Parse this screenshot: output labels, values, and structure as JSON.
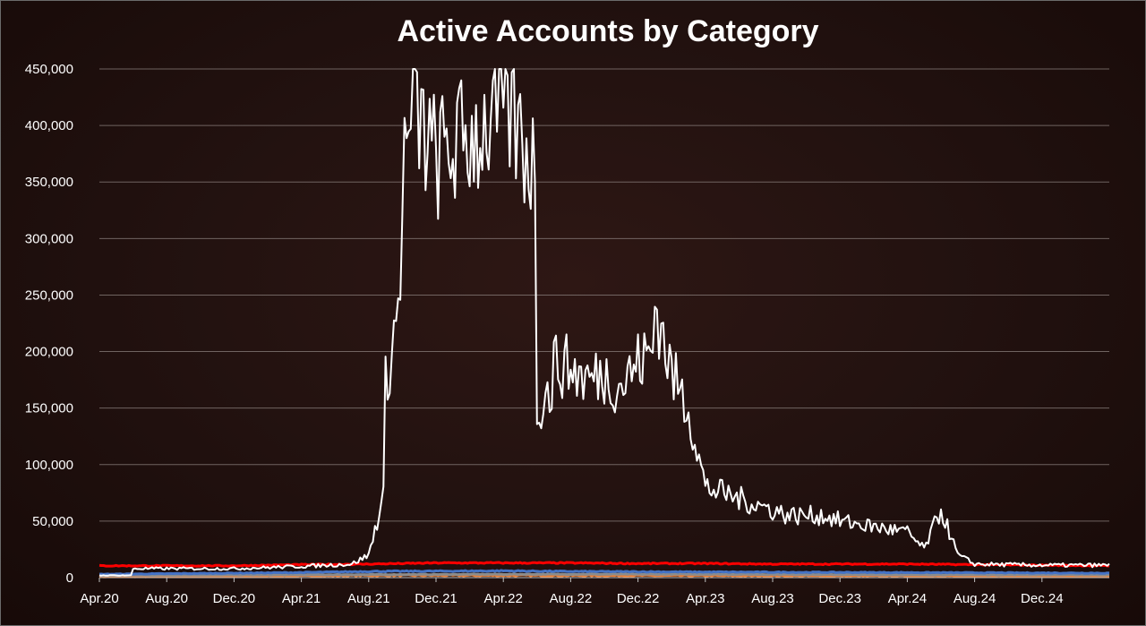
{
  "chart_data": {
    "type": "line",
    "title": "Active Accounts by Category",
    "xlabel": "",
    "ylabel": "",
    "ylim": [
      0,
      450000
    ],
    "y_ticks": [
      "0",
      "50,000",
      "100,000",
      "150,000",
      "200,000",
      "250,000",
      "300,000",
      "350,000",
      "400,000",
      "450,000"
    ],
    "x_ticks": [
      "Apr.20",
      "Aug.20",
      "Dec.20",
      "Apr.21",
      "Aug.21",
      "Dec.21",
      "Apr.22",
      "Aug.22",
      "Dec.22",
      "Apr.23",
      "Aug.23",
      "Dec.23",
      "Apr.24",
      "Aug.24",
      "Dec.24"
    ],
    "x_range": [
      "Apr.20",
      "Apr.25"
    ],
    "grid": true,
    "legend": "none",
    "series": [
      {
        "color": "#ffffff",
        "x": [
          "Apr.20",
          "Jun.20",
          "Jun.20",
          "Aug.20",
          "Dec.20",
          "Apr.21",
          "Jul.21",
          "Aug.21",
          "Sep.21",
          "Sep.21",
          "Oct.21",
          "Oct.21",
          "Nov.21",
          "Nov.21",
          "Dec.21",
          "Jan.22",
          "Feb.22",
          "Mar.22",
          "Apr.22",
          "May.22",
          "Jun.22",
          "Jun.22",
          "Jul.22",
          "Jul.22",
          "Aug.22",
          "Sep.22",
          "Oct.22",
          "Nov.22",
          "Dec.22",
          "Jan.23",
          "Jan.23",
          "Feb.23",
          "Mar.23",
          "Apr.23",
          "May.23",
          "Jun.23",
          "Aug.23",
          "Sep.23",
          "Nov.23",
          "Dec.23",
          "Feb.24",
          "Apr.24",
          "May.24",
          "Jun.24",
          "Jul.24",
          "Aug.24",
          "Dec.24",
          "Apr.25"
        ],
        "y": [
          2000,
          2000,
          8000,
          8000,
          8000,
          10000,
          12000,
          20000,
          80000,
          170000,
          260000,
          360000,
          430000,
          400000,
          370000,
          380000,
          390000,
          400000,
          420000,
          390000,
          360000,
          150000,
          170000,
          190000,
          185000,
          175000,
          180000,
          170000,
          190000,
          200000,
          245000,
          180000,
          150000,
          80000,
          75000,
          70000,
          60000,
          55000,
          55000,
          50000,
          45000,
          40000,
          25000,
          60000,
          20000,
          12000,
          11000,
          11000
        ],
        "noise": 0.16
      },
      {
        "color": "#ff0000",
        "x": [
          "Apr.20",
          "Dec.20",
          "Apr.21",
          "Aug.21",
          "Dec.21",
          "Apr.22",
          "Aug.22",
          "Dec.22",
          "Apr.23",
          "Aug.23",
          "Dec.23",
          "Apr.24",
          "Aug.24",
          "Dec.24",
          "Apr.25"
        ],
        "y": [
          10500,
          10500,
          11500,
          12000,
          13000,
          13000,
          13000,
          12500,
          12500,
          12000,
          12000,
          12000,
          11500,
          11000,
          10500
        ],
        "noise": 0.04
      },
      {
        "color": "#4472c4",
        "x": [
          "Apr.20",
          "Apr.21",
          "Aug.21",
          "Apr.22",
          "Aug.22",
          "Apr.23",
          "Apr.24",
          "Apr.25"
        ],
        "y": [
          3000,
          4500,
          5500,
          6000,
          5500,
          5000,
          4500,
          4000
        ],
        "noise": 0.08
      },
      {
        "color": "#8c8c8c",
        "x": [
          "Apr.20",
          "Apr.21",
          "Apr.22",
          "Apr.23",
          "Apr.24",
          "Apr.25"
        ],
        "y": [
          2000,
          2500,
          3000,
          3000,
          2500,
          2500
        ],
        "noise": 0.1
      },
      {
        "color": "#ed7d31",
        "x": [
          "Apr.20",
          "Apr.21",
          "Aug.21",
          "Apr.22",
          "Apr.23",
          "Apr.24",
          "Apr.25"
        ],
        "y": [
          800,
          1500,
          2000,
          2000,
          1800,
          1500,
          1200
        ],
        "noise": 0.3
      }
    ]
  }
}
